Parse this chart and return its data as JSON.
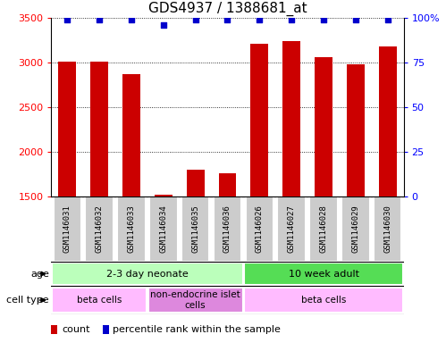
{
  "title": "GDS4937 / 1388681_at",
  "samples": [
    "GSM1146031",
    "GSM1146032",
    "GSM1146033",
    "GSM1146034",
    "GSM1146035",
    "GSM1146036",
    "GSM1146026",
    "GSM1146027",
    "GSM1146028",
    "GSM1146029",
    "GSM1146030"
  ],
  "counts": [
    3010,
    3005,
    2870,
    1520,
    1800,
    1760,
    3210,
    3240,
    3060,
    2980,
    3180
  ],
  "percentiles": [
    99,
    99,
    99,
    96,
    99,
    99,
    99,
    99,
    99,
    99,
    99
  ],
  "ylim_left": [
    1500,
    3500
  ],
  "ylim_right": [
    0,
    100
  ],
  "yticks_left": [
    1500,
    2000,
    2500,
    3000,
    3500
  ],
  "yticks_right": [
    0,
    25,
    50,
    75,
    100
  ],
  "ytick_right_labels": [
    "0",
    "25",
    "50",
    "75",
    "100%"
  ],
  "bar_color": "#cc0000",
  "dot_color": "#0000cc",
  "bar_width": 0.55,
  "age_groups": [
    {
      "label": "2-3 day neonate",
      "start": 0,
      "end": 6,
      "color": "#bbffbb"
    },
    {
      "label": "10 week adult",
      "start": 6,
      "end": 11,
      "color": "#55dd55"
    }
  ],
  "cell_type_groups": [
    {
      "label": "beta cells",
      "start": 0,
      "end": 3,
      "color": "#ffbbff"
    },
    {
      "label": "non-endocrine islet\ncells",
      "start": 3,
      "end": 6,
      "color": "#dd88dd"
    },
    {
      "label": "beta cells",
      "start": 6,
      "end": 11,
      "color": "#ffbbff"
    }
  ],
  "legend_items": [
    {
      "color": "#cc0000",
      "label": "count"
    },
    {
      "color": "#0000cc",
      "label": "percentile rank within the sample"
    }
  ],
  "grid_color": "black",
  "background_color": "white",
  "sample_box_color": "#cccccc",
  "age_row_label": "age",
  "cell_type_row_label": "cell type",
  "title_fontsize": 11,
  "tick_fontsize": 8,
  "annotation_fontsize": 8,
  "sample_fontsize": 6.5,
  "legend_fontsize": 8
}
